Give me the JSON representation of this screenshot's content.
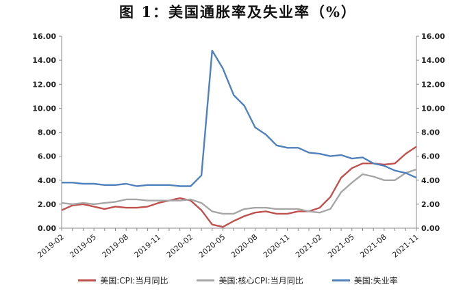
{
  "chart_data": {
    "type": "line",
    "title": "图 1：美国通胀率及失业率（%）",
    "xlabel": "",
    "ylabel": "",
    "ylim": [
      0,
      16
    ],
    "y_ticks": [
      "0.00",
      "2.00",
      "4.00",
      "6.00",
      "8.00",
      "10.00",
      "12.00",
      "14.00",
      "16.00"
    ],
    "y2_ticks": [
      "0.00",
      "2.00",
      "4.00",
      "6.00",
      "8.00",
      "10.00",
      "12.00",
      "14.00",
      "16.00"
    ],
    "x": [
      "2019-02",
      "2019-03",
      "2019-04",
      "2019-05",
      "2019-06",
      "2019-07",
      "2019-08",
      "2019-09",
      "2019-10",
      "2019-11",
      "2019-12",
      "2020-01",
      "2020-02",
      "2020-03",
      "2020-04",
      "2020-05",
      "2020-06",
      "2020-07",
      "2020-08",
      "2020-09",
      "2020-10",
      "2020-11",
      "2020-12",
      "2021-01",
      "2021-02",
      "2021-03",
      "2021-04",
      "2021-05",
      "2021-06",
      "2021-07",
      "2021-08",
      "2021-09",
      "2021-10",
      "2021-11"
    ],
    "x_tick_labels": [
      "2019-02",
      "2019-05",
      "2019-08",
      "2019-11",
      "2020-02",
      "2020-05",
      "2020-08",
      "2020-11",
      "2021-02",
      "2021-05",
      "2021-08",
      "2021-11"
    ],
    "grid": false,
    "legend_position": "bottom",
    "series": [
      {
        "name": "美国:CPI:当月同比",
        "color": "#c0504d",
        "values": [
          1.5,
          1.9,
          2.0,
          1.8,
          1.6,
          1.8,
          1.7,
          1.7,
          1.8,
          2.1,
          2.3,
          2.5,
          2.3,
          1.5,
          0.3,
          0.1,
          0.6,
          1.0,
          1.3,
          1.4,
          1.2,
          1.2,
          1.4,
          1.4,
          1.7,
          2.6,
          4.2,
          5.0,
          5.4,
          5.4,
          5.3,
          5.4,
          6.2,
          6.8
        ]
      },
      {
        "name": "美国:核心CPI:当月同比",
        "color": "#a6a6a6",
        "values": [
          2.1,
          2.0,
          2.1,
          2.0,
          2.1,
          2.2,
          2.4,
          2.4,
          2.3,
          2.3,
          2.3,
          2.3,
          2.4,
          2.1,
          1.4,
          1.2,
          1.2,
          1.6,
          1.7,
          1.7,
          1.6,
          1.6,
          1.6,
          1.4,
          1.3,
          1.6,
          3.0,
          3.8,
          4.5,
          4.3,
          4.0,
          4.0,
          4.6,
          4.9
        ]
      },
      {
        "name": "美国:失业率",
        "color": "#4f81bd",
        "values": [
          3.8,
          3.8,
          3.7,
          3.7,
          3.6,
          3.6,
          3.7,
          3.5,
          3.6,
          3.6,
          3.6,
          3.5,
          3.5,
          4.4,
          14.8,
          13.3,
          11.1,
          10.2,
          8.4,
          7.8,
          6.9,
          6.7,
          6.7,
          6.3,
          6.2,
          6.0,
          6.1,
          5.8,
          5.9,
          5.4,
          5.2,
          4.8,
          4.6,
          4.2
        ]
      }
    ]
  }
}
